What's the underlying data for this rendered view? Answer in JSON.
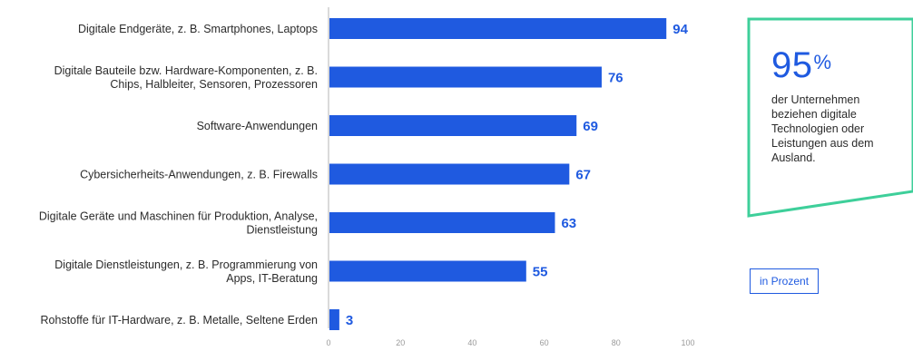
{
  "chart_data": {
    "type": "bar",
    "orientation": "horizontal",
    "categories": [
      [
        "Digitale Endgeräte, z. B. Smartphones, Laptops"
      ],
      [
        "Digitale Bauteile bzw. Hardware-Komponenten, z. B.",
        "Chips, Halbleiter, Sensoren, Prozessoren"
      ],
      [
        "Software-Anwendungen"
      ],
      [
        "Cybersicherheits-Anwendungen, z. B. Firewalls"
      ],
      [
        "Digitale Geräte und Maschinen für Produktion, Analyse,",
        "Dienstleistung"
      ],
      [
        "Digitale Dienstleistungen, z. B. Programmierung von",
        "Apps, IT-Beratung"
      ],
      [
        "Rohstoffe für IT-Hardware, z. B. Metalle, Seltene Erden"
      ]
    ],
    "values": [
      94,
      76,
      69,
      67,
      63,
      55,
      3
    ],
    "xlim": [
      0,
      100
    ],
    "xticks": [
      0,
      20,
      40,
      60,
      80,
      100
    ],
    "title": "",
    "xlabel": "",
    "ylabel": "",
    "grid": false,
    "bar_color": "#1f5ae0"
  },
  "callout": {
    "number": "95",
    "unit": "%",
    "text": "der Unternehmen beziehen digitale Technologien oder Leistungen aus dem Ausland.",
    "border_color": "#3ecf9a"
  },
  "unit_badge": "in Prozent"
}
